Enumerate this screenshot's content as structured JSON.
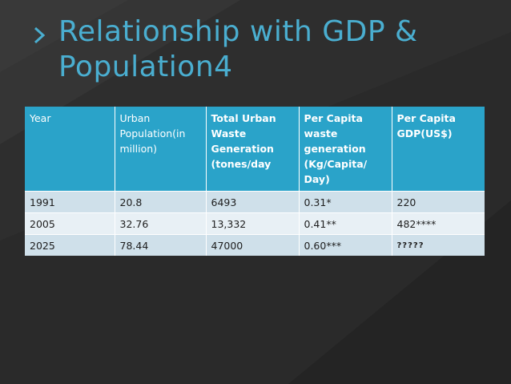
{
  "slide": {
    "title_line1": "Relationship with GDP &",
    "title_line2": "Population4",
    "colors": {
      "background": "#2e2e2e",
      "title": "#4aaed0",
      "header": "#2aa3c9",
      "row_light": "#cfe0ea",
      "row_lighter": "#e8f0f5"
    }
  },
  "table": {
    "headers": [
      "Year",
      "Urban Population(in million)",
      "Total Urban Waste Generation (tones/day",
      "Per Capita waste generation (Kg/Capita/ Day)",
      "Per Capita GDP(US$)"
    ],
    "rows": [
      [
        "1991",
        "20.8",
        "6493",
        "0.31*",
        "220"
      ],
      [
        "2005",
        "32.76",
        "13,332",
        "0.41**",
        "482****"
      ],
      [
        "2025",
        "78.44",
        "47000",
        "0.60***",
        "?????"
      ]
    ]
  }
}
